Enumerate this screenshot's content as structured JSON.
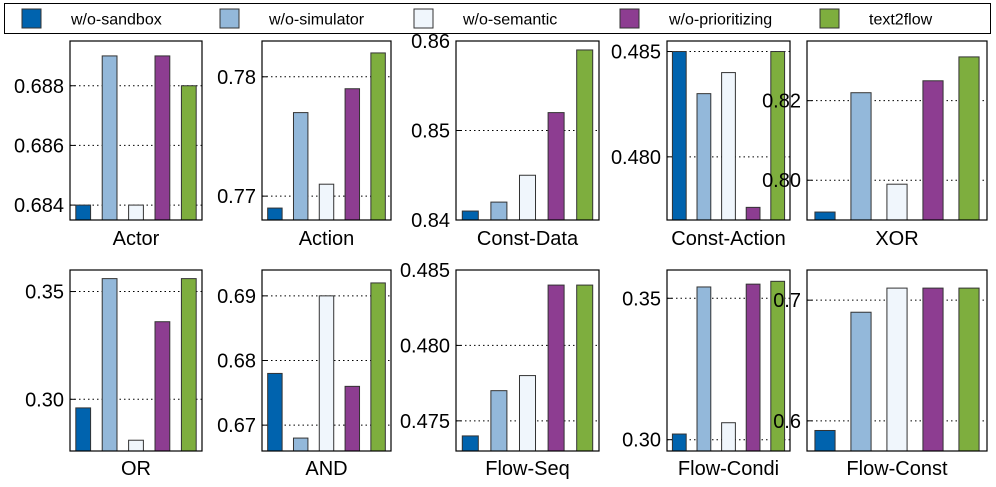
{
  "legend": {
    "series": [
      {
        "name": "w/o-sandbox",
        "color": "#0063AE"
      },
      {
        "name": "w/o-simulator",
        "color": "#93B8DA"
      },
      {
        "name": "w/o-semantic",
        "color": "#F0F6FC"
      },
      {
        "name": "w/o-prioritizing",
        "color": "#8D3D91"
      },
      {
        "name": "text2flow",
        "color": "#7EAE3E"
      }
    ]
  },
  "chart_data": [
    {
      "type": "bar",
      "title": "Actor",
      "series": [
        "w/o-sandbox",
        "w/o-simulator",
        "w/o-semantic",
        "w/o-prioritizing",
        "text2flow"
      ],
      "values": [
        0.684,
        0.689,
        0.684,
        0.689,
        0.688
      ],
      "ylim": [
        0.6835,
        0.6895
      ],
      "yticks": [
        0.684,
        0.686,
        0.688
      ],
      "ytick_labels": [
        "0.684",
        "0.686",
        "0.688"
      ]
    },
    {
      "type": "bar",
      "title": "Action",
      "series": [
        "w/o-sandbox",
        "w/o-simulator",
        "w/o-semantic",
        "w/o-prioritizing",
        "text2flow"
      ],
      "values": [
        0.769,
        0.777,
        0.771,
        0.779,
        0.782
      ],
      "ylim": [
        0.768,
        0.783
      ],
      "yticks": [
        0.77,
        0.78
      ],
      "ytick_labels": [
        "0.77",
        "0.78"
      ]
    },
    {
      "type": "bar",
      "title": "Const-Data",
      "series": [
        "w/o-sandbox",
        "w/o-simulator",
        "w/o-semantic",
        "w/o-prioritizing",
        "text2flow"
      ],
      "values": [
        0.841,
        0.842,
        0.845,
        0.852,
        0.859
      ],
      "ylim": [
        0.84,
        0.86
      ],
      "yticks": [
        0.84,
        0.85,
        0.86
      ],
      "ytick_labels": [
        "0.84",
        "0.85",
        "0.86"
      ]
    },
    {
      "type": "bar",
      "title": "Const-Action",
      "series": [
        "w/o-sandbox",
        "w/o-simulator",
        "w/o-semantic",
        "w/o-prioritizing",
        "text2flow"
      ],
      "values": [
        0.485,
        0.483,
        0.484,
        0.4776,
        0.485
      ],
      "ylim": [
        0.477,
        0.4855
      ],
      "yticks": [
        0.48,
        0.485
      ],
      "ytick_labels": [
        "0.480",
        "0.485"
      ]
    },
    {
      "type": "bar",
      "title": "XOR",
      "series": [
        "w/o-sandbox",
        "w/o-simulator",
        "w/o-semantic",
        "w/o-prioritizing",
        "text2flow"
      ],
      "values": [
        0.792,
        0.822,
        0.799,
        0.825,
        0.831
      ],
      "ylim": [
        0.79,
        0.835
      ],
      "yticks": [
        0.8,
        0.82
      ],
      "ytick_labels": [
        "0.80",
        "0.82"
      ]
    },
    {
      "type": "bar",
      "title": "OR",
      "series": [
        "w/o-sandbox",
        "w/o-simulator",
        "w/o-semantic",
        "w/o-prioritizing",
        "text2flow"
      ],
      "values": [
        0.296,
        0.356,
        0.281,
        0.336,
        0.356
      ],
      "ylim": [
        0.276,
        0.36
      ],
      "yticks": [
        0.3,
        0.35
      ],
      "ytick_labels": [
        "0.30",
        "0.35"
      ]
    },
    {
      "type": "bar",
      "title": "AND",
      "series": [
        "w/o-sandbox",
        "w/o-simulator",
        "w/o-semantic",
        "w/o-prioritizing",
        "text2flow"
      ],
      "values": [
        0.678,
        0.668,
        0.69,
        0.676,
        0.692
      ],
      "ylim": [
        0.666,
        0.694
      ],
      "yticks": [
        0.67,
        0.68,
        0.69
      ],
      "ytick_labels": [
        "0.67",
        "0.68",
        "0.69"
      ]
    },
    {
      "type": "bar",
      "title": "Flow-Seq",
      "series": [
        "w/o-sandbox",
        "w/o-simulator",
        "w/o-semantic",
        "w/o-prioritizing",
        "text2flow"
      ],
      "values": [
        0.474,
        0.477,
        0.478,
        0.484,
        0.484
      ],
      "ylim": [
        0.473,
        0.485
      ],
      "yticks": [
        0.475,
        0.48,
        0.485
      ],
      "ytick_labels": [
        "0.475",
        "0.480",
        "0.485"
      ]
    },
    {
      "type": "bar",
      "title": "Flow-Condi",
      "series": [
        "w/o-sandbox",
        "w/o-simulator",
        "w/o-semantic",
        "w/o-prioritizing",
        "text2flow"
      ],
      "values": [
        0.302,
        0.354,
        0.306,
        0.355,
        0.356
      ],
      "ylim": [
        0.296,
        0.36
      ],
      "yticks": [
        0.3,
        0.35
      ],
      "ytick_labels": [
        "0.30",
        "0.35"
      ]
    },
    {
      "type": "bar",
      "title": "Flow-Const",
      "series": [
        "w/o-sandbox",
        "w/o-simulator",
        "w/o-semantic",
        "w/o-prioritizing",
        "text2flow"
      ],
      "values": [
        0.592,
        0.69,
        0.71,
        0.71,
        0.71
      ],
      "ylim": [
        0.575,
        0.725
      ],
      "yticks": [
        0.6,
        0.7
      ],
      "ytick_labels": [
        "0.6",
        "0.7"
      ]
    }
  ]
}
